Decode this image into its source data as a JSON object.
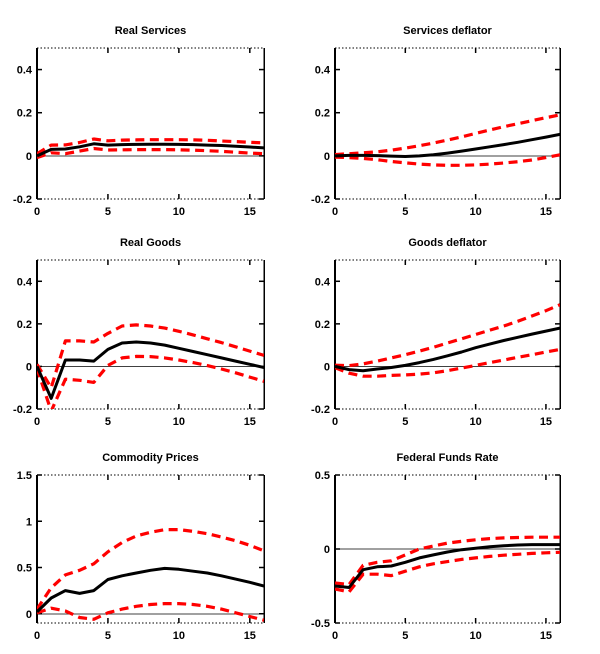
{
  "figure": {
    "background": "#ffffff",
    "point_line_color": "#000000",
    "band_line_color": "#ff0000",
    "zero_line_color": "#404040",
    "axis_color": "#000000",
    "tick_font_size": 11
  },
  "chart_data": [
    {
      "type": "line",
      "title": "Real Services",
      "x": [
        0,
        1,
        2,
        3,
        4,
        5,
        6,
        7,
        8,
        9,
        10,
        11,
        12,
        13,
        14,
        15,
        16
      ],
      "xlim": [
        0,
        16
      ],
      "ylim": [
        -0.2,
        0.5
      ],
      "xticks": [
        0,
        5,
        10,
        15
      ],
      "yticks": [
        -0.2,
        0,
        0.2,
        0.4
      ],
      "xtick_labels": [
        "0",
        "5",
        "10",
        "15"
      ],
      "ytick_labels": [
        "-0.2",
        "0",
        "0.2",
        "0.4"
      ],
      "grid": false,
      "zero_line": true,
      "legend": null,
      "series": [
        {
          "name": "point-estimate",
          "style": "solid-black",
          "values": [
            0,
            0.03,
            0.032,
            0.042,
            0.056,
            0.05,
            0.052,
            0.053,
            0.054,
            0.054,
            0.053,
            0.052,
            0.05,
            0.048,
            0.045,
            0.041,
            0.037
          ]
        },
        {
          "name": "upper-band",
          "style": "dashed-red",
          "values": [
            0.01,
            0.05,
            0.051,
            0.062,
            0.078,
            0.07,
            0.073,
            0.074,
            0.075,
            0.075,
            0.075,
            0.074,
            0.072,
            0.069,
            0.066,
            0.063,
            0.06
          ]
        },
        {
          "name": "lower-band",
          "style": "dashed-red",
          "values": [
            -0.008,
            0.014,
            0.01,
            0.022,
            0.034,
            0.027,
            0.028,
            0.029,
            0.029,
            0.029,
            0.028,
            0.026,
            0.024,
            0.021,
            0.017,
            0.013,
            0.01
          ]
        }
      ]
    },
    {
      "type": "line",
      "title": "Services deflator",
      "x": [
        0,
        1,
        2,
        3,
        4,
        5,
        6,
        7,
        8,
        9,
        10,
        11,
        12,
        13,
        14,
        15,
        16
      ],
      "xlim": [
        0,
        16
      ],
      "ylim": [
        -0.2,
        0.5
      ],
      "xticks": [
        0,
        5,
        10,
        15
      ],
      "yticks": [
        -0.2,
        0,
        0.2,
        0.4
      ],
      "xtick_labels": [
        "0",
        "5",
        "10",
        "15"
      ],
      "ytick_labels": [
        "-0.2",
        "0",
        "0.2",
        "0.4"
      ],
      "grid": false,
      "zero_line": true,
      "legend": null,
      "series": [
        {
          "name": "point-estimate",
          "style": "solid-black",
          "values": [
            0,
            0.002,
            0.002,
            0.001,
            -0.001,
            -0.003,
            0,
            0.005,
            0.013,
            0.022,
            0.032,
            0.042,
            0.052,
            0.063,
            0.075,
            0.087,
            0.1
          ]
        },
        {
          "name": "upper-band",
          "style": "dashed-red",
          "values": [
            0.006,
            0.01,
            0.014,
            0.019,
            0.026,
            0.036,
            0.047,
            0.059,
            0.073,
            0.088,
            0.104,
            0.12,
            0.135,
            0.149,
            0.163,
            0.177,
            0.19
          ]
        },
        {
          "name": "lower-band",
          "style": "dashed-red",
          "values": [
            -0.006,
            -0.008,
            -0.012,
            -0.018,
            -0.026,
            -0.032,
            -0.038,
            -0.042,
            -0.044,
            -0.044,
            -0.042,
            -0.038,
            -0.033,
            -0.027,
            -0.019,
            -0.008,
            0.005
          ]
        }
      ]
    },
    {
      "type": "line",
      "title": "Real Goods",
      "x": [
        0,
        1,
        2,
        3,
        4,
        5,
        6,
        7,
        8,
        9,
        10,
        11,
        12,
        13,
        14,
        15,
        16
      ],
      "xlim": [
        0,
        16
      ],
      "ylim": [
        -0.2,
        0.5
      ],
      "xticks": [
        0,
        5,
        10,
        15
      ],
      "yticks": [
        -0.2,
        0,
        0.2,
        0.4
      ],
      "xtick_labels": [
        "0",
        "5",
        "10",
        "15"
      ],
      "ytick_labels": [
        "-0.2",
        "0",
        "0.2",
        "0.4"
      ],
      "grid": false,
      "zero_line": true,
      "legend": null,
      "series": [
        {
          "name": "point-estimate",
          "style": "solid-black",
          "values": [
            0,
            -0.15,
            0.03,
            0.03,
            0.025,
            0.08,
            0.11,
            0.115,
            0.11,
            0.1,
            0.085,
            0.07,
            0.055,
            0.04,
            0.025,
            0.01,
            -0.005
          ]
        },
        {
          "name": "upper-band",
          "style": "dashed-red",
          "values": [
            0.01,
            -0.1,
            0.12,
            0.12,
            0.115,
            0.155,
            0.19,
            0.195,
            0.19,
            0.18,
            0.165,
            0.148,
            0.13,
            0.112,
            0.092,
            0.072,
            0.052
          ]
        },
        {
          "name": "lower-band",
          "style": "dashed-red",
          "values": [
            -0.01,
            -0.21,
            -0.06,
            -0.065,
            -0.075,
            0.005,
            0.04,
            0.047,
            0.046,
            0.04,
            0.03,
            0.018,
            0.004,
            -0.012,
            -0.03,
            -0.05,
            -0.07
          ]
        }
      ]
    },
    {
      "type": "line",
      "title": "Goods deflator",
      "x": [
        0,
        1,
        2,
        3,
        4,
        5,
        6,
        7,
        8,
        9,
        10,
        11,
        12,
        13,
        14,
        15,
        16
      ],
      "xlim": [
        0,
        16
      ],
      "ylim": [
        -0.2,
        0.5
      ],
      "xticks": [
        0,
        5,
        10,
        15
      ],
      "yticks": [
        -0.2,
        0,
        0.2,
        0.4
      ],
      "xtick_labels": [
        "0",
        "5",
        "10",
        "15"
      ],
      "ytick_labels": [
        "-0.2",
        "0",
        "0.2",
        "0.4"
      ],
      "grid": false,
      "zero_line": true,
      "legend": null,
      "series": [
        {
          "name": "point-estimate",
          "style": "solid-black",
          "values": [
            0,
            -0.015,
            -0.02,
            -0.012,
            -0.005,
            0.005,
            0.018,
            0.033,
            0.05,
            0.068,
            0.088,
            0.105,
            0.122,
            0.137,
            0.152,
            0.166,
            0.18
          ]
        },
        {
          "name": "upper-band",
          "style": "dashed-red",
          "values": [
            0.006,
            0.004,
            0.012,
            0.025,
            0.04,
            0.055,
            0.072,
            0.09,
            0.11,
            0.13,
            0.15,
            0.17,
            0.19,
            0.212,
            0.237,
            0.262,
            0.29
          ]
        },
        {
          "name": "lower-band",
          "style": "dashed-red",
          "values": [
            -0.006,
            -0.032,
            -0.046,
            -0.046,
            -0.042,
            -0.04,
            -0.036,
            -0.03,
            -0.02,
            -0.008,
            0.005,
            0.018,
            0.03,
            0.043,
            0.055,
            0.068,
            0.08
          ]
        }
      ]
    },
    {
      "type": "line",
      "title": "Commodity Prices",
      "x": [
        0,
        1,
        2,
        3,
        4,
        5,
        6,
        7,
        8,
        9,
        10,
        11,
        12,
        13,
        14,
        15,
        16
      ],
      "xlim": [
        0,
        16
      ],
      "ylim": [
        -0.1,
        1.5
      ],
      "xticks": [
        0,
        5,
        10,
        15
      ],
      "yticks": [
        0,
        0.5,
        1,
        1.5
      ],
      "xtick_labels": [
        "0",
        "5",
        "10",
        "15"
      ],
      "ytick_labels": [
        "0",
        "0.5",
        "1",
        "1.5"
      ],
      "grid": false,
      "zero_line": true,
      "legend": null,
      "series": [
        {
          "name": "point-estimate",
          "style": "solid-black",
          "values": [
            0.02,
            0.17,
            0.25,
            0.22,
            0.25,
            0.37,
            0.41,
            0.44,
            0.47,
            0.49,
            0.48,
            0.46,
            0.44,
            0.41,
            0.375,
            0.34,
            0.3
          ]
        },
        {
          "name": "upper-band",
          "style": "dashed-red",
          "values": [
            0.05,
            0.28,
            0.42,
            0.47,
            0.54,
            0.67,
            0.77,
            0.84,
            0.88,
            0.91,
            0.91,
            0.89,
            0.865,
            0.83,
            0.79,
            0.74,
            0.68
          ]
        },
        {
          "name": "lower-band",
          "style": "dashed-red",
          "values": [
            0.01,
            0.06,
            0.03,
            -0.04,
            -0.06,
            0.01,
            0.05,
            0.08,
            0.1,
            0.11,
            0.11,
            0.1,
            0.08,
            0.05,
            0.01,
            -0.03,
            -0.07
          ]
        }
      ]
    },
    {
      "type": "line",
      "title": "Federal Funds Rate",
      "x": [
        0,
        1,
        2,
        3,
        4,
        5,
        6,
        7,
        8,
        9,
        10,
        11,
        12,
        13,
        14,
        15,
        16
      ],
      "xlim": [
        0,
        16
      ],
      "ylim": [
        -0.5,
        0.5
      ],
      "xticks": [
        0,
        5,
        10,
        15
      ],
      "yticks": [
        -0.5,
        0,
        0.5
      ],
      "xtick_labels": [
        "0",
        "5",
        "10",
        "15"
      ],
      "ytick_labels": [
        "-0.5",
        "0",
        "0.5"
      ],
      "grid": false,
      "zero_line": true,
      "legend": null,
      "series": [
        {
          "name": "point-estimate",
          "style": "solid-black",
          "values": [
            -0.25,
            -0.26,
            -0.14,
            -0.12,
            -0.115,
            -0.09,
            -0.06,
            -0.04,
            -0.02,
            -0.005,
            0.005,
            0.015,
            0.022,
            0.027,
            0.03,
            0.03,
            0.03
          ]
        },
        {
          "name": "upper-band",
          "style": "dashed-red",
          "values": [
            -0.23,
            -0.24,
            -0.11,
            -0.09,
            -0.08,
            -0.04,
            0,
            0.02,
            0.04,
            0.052,
            0.062,
            0.07,
            0.075,
            0.078,
            0.08,
            0.08,
            0.08
          ]
        },
        {
          "name": "lower-band",
          "style": "dashed-red",
          "values": [
            -0.27,
            -0.29,
            -0.17,
            -0.17,
            -0.18,
            -0.15,
            -0.12,
            -0.1,
            -0.085,
            -0.07,
            -0.06,
            -0.05,
            -0.042,
            -0.036,
            -0.03,
            -0.026,
            -0.022
          ]
        }
      ]
    }
  ]
}
